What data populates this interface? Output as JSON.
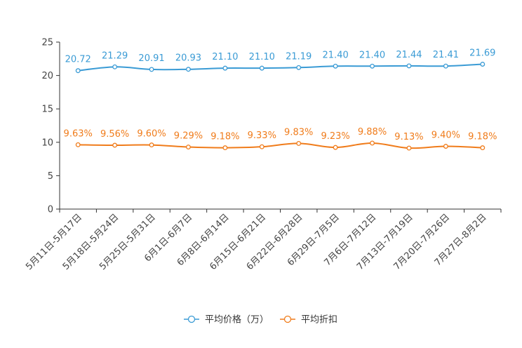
{
  "chart_data": {
    "type": "line",
    "title": "",
    "xlabel": "",
    "ylabel": "",
    "ylim": [
      0,
      25
    ],
    "yticks": [
      0,
      5,
      10,
      15,
      20,
      25
    ],
    "grid": false,
    "legend_position": "bottom-center",
    "categories": [
      "5月11日-5月17日",
      "5月18日-5月24日",
      "5月25日-5月31日",
      "6月1日-6月7日",
      "6月8日-6月14日",
      "6月15日-6月21日",
      "6月22日-6月28日",
      "6月29日-7月5日",
      "7月6日-7月12日",
      "7月13日-7月19日",
      "7月20日-7月26日",
      "7月27日-8月2日"
    ],
    "series": [
      {
        "name": "平均价格（万）",
        "color": "#3a9bd5",
        "values": [
          20.72,
          21.29,
          20.91,
          20.93,
          21.1,
          21.1,
          21.19,
          21.4,
          21.4,
          21.44,
          21.41,
          21.69
        ],
        "labels": [
          "20.72",
          "21.29",
          "20.91",
          "20.93",
          "21.10",
          "21.10",
          "21.19",
          "21.40",
          "21.40",
          "21.44",
          "21.41",
          "21.69"
        ]
      },
      {
        "name": "平均折扣",
        "color": "#f07c1b",
        "values": [
          9.63,
          9.56,
          9.6,
          9.29,
          9.18,
          9.33,
          9.83,
          9.23,
          9.88,
          9.13,
          9.4,
          9.18
        ],
        "labels": [
          "9.63%",
          "9.56%",
          "9.60%",
          "9.29%",
          "9.18%",
          "9.33%",
          "9.83%",
          "9.23%",
          "9.88%",
          "9.13%",
          "9.40%",
          "9.18%"
        ]
      }
    ]
  }
}
